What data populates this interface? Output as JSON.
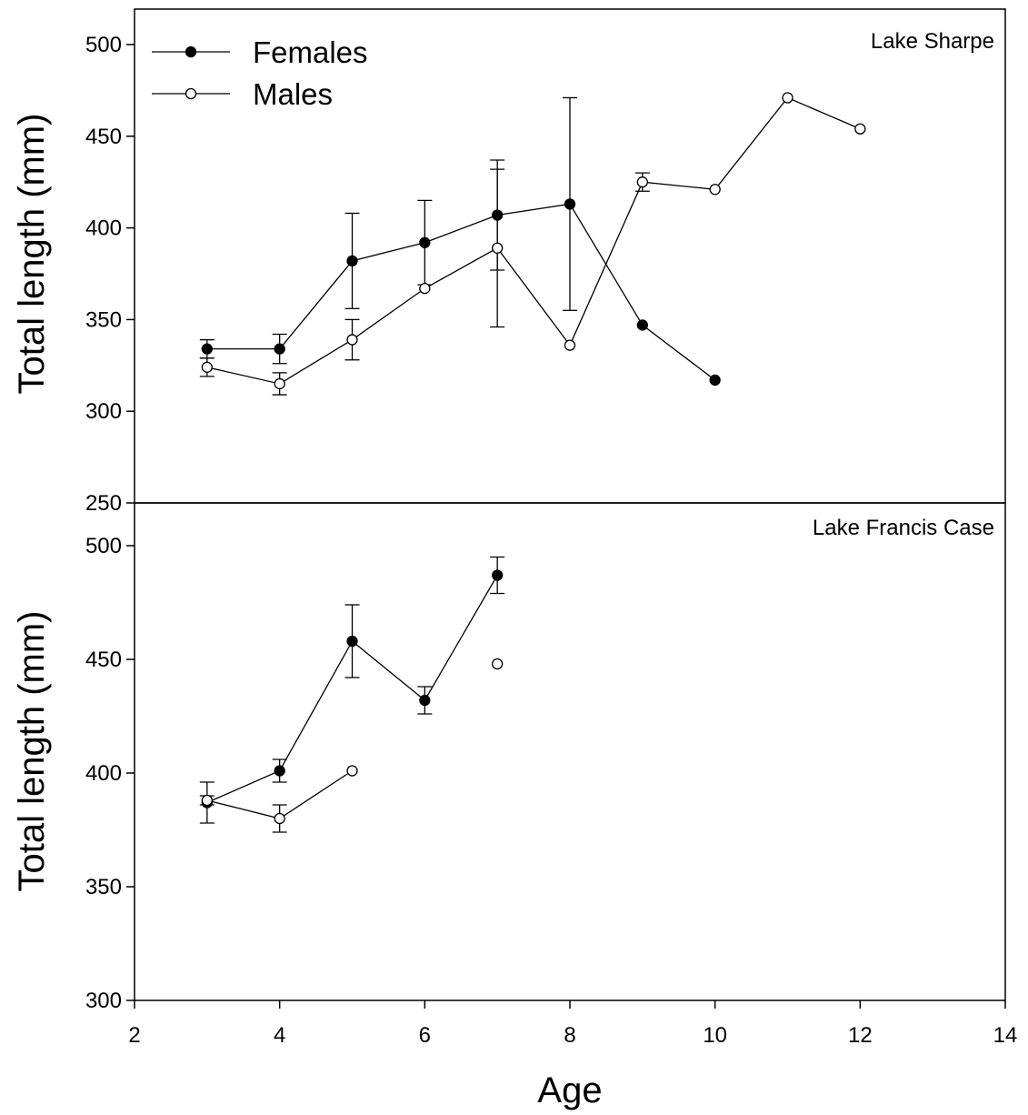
{
  "chart_data": [
    {
      "type": "line",
      "panel_label": "Lake Sharpe",
      "ylabel": "Total length (mm)",
      "xlabel": "",
      "xlim": [
        2,
        14
      ],
      "ylim": [
        250,
        520
      ],
      "yticks": [
        250,
        300,
        350,
        400,
        450,
        500
      ],
      "legend": {
        "placement": "top-left",
        "entries": [
          "Females",
          "Males"
        ]
      },
      "series": [
        {
          "name": "Females",
          "marker": "filled-circle",
          "points": [
            {
              "x": 3,
              "y": 334,
              "err": 5
            },
            {
              "x": 4,
              "y": 334,
              "err": 8
            },
            {
              "x": 5,
              "y": 382,
              "err": 26
            },
            {
              "x": 6,
              "y": 392,
              "err": 23
            },
            {
              "x": 7,
              "y": 407,
              "err": 30
            },
            {
              "x": 8,
              "y": 413,
              "err": 58
            },
            {
              "x": 9,
              "y": 347,
              "err": null
            },
            {
              "x": 10,
              "y": 317,
              "err": null
            }
          ]
        },
        {
          "name": "Males",
          "marker": "open-circle",
          "points": [
            {
              "x": 3,
              "y": 324,
              "err": 5
            },
            {
              "x": 4,
              "y": 315,
              "err": 6
            },
            {
              "x": 5,
              "y": 339,
              "err": 11
            },
            {
              "x": 6,
              "y": 367,
              "err": null
            },
            {
              "x": 7,
              "y": 389,
              "err": 43
            },
            {
              "x": 8,
              "y": 336,
              "err": null
            },
            {
              "x": 9,
              "y": 425,
              "err": 5
            },
            {
              "x": 10,
              "y": 421,
              "err": null
            },
            {
              "x": 11,
              "y": 471,
              "err": null
            },
            {
              "x": 12,
              "y": 454,
              "err": null
            }
          ]
        }
      ]
    },
    {
      "type": "line",
      "panel_label": "Lake Francis Case",
      "ylabel": "Total  length (mm)",
      "xlabel": "Age",
      "xlim": [
        2,
        14
      ],
      "xticks": [
        2,
        4,
        6,
        8,
        10,
        12,
        14
      ],
      "ylim": [
        300,
        510
      ],
      "yticks": [
        300,
        350,
        400,
        450,
        500
      ],
      "series": [
        {
          "name": "Females",
          "marker": "filled-circle",
          "points": [
            {
              "x": 3,
              "y": 387,
              "err": 9
            },
            {
              "x": 4,
              "y": 401,
              "err": 5
            },
            {
              "x": 5,
              "y": 458,
              "err": 16
            },
            {
              "x": 6,
              "y": 432,
              "err": 6
            },
            {
              "x": 7,
              "y": 487,
              "err": 8
            }
          ]
        },
        {
          "name": "Males",
          "marker": "open-circle",
          "segments": [
            [
              3,
              4,
              5
            ]
          ],
          "points": [
            {
              "x": 3,
              "y": 388,
              "err": 2
            },
            {
              "x": 4,
              "y": 380,
              "err": 6
            },
            {
              "x": 5,
              "y": 401,
              "err": null
            },
            {
              "x": 7,
              "y": 448,
              "err": null
            }
          ]
        }
      ]
    }
  ]
}
